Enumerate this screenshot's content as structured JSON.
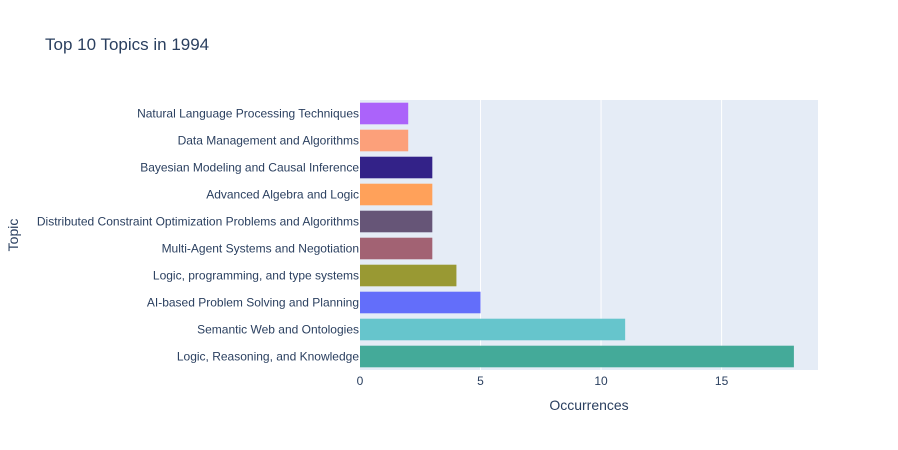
{
  "chart_data": {
    "type": "bar",
    "orientation": "horizontal",
    "title": "Top 10 Topics in 1994",
    "xlabel": "Occurrences",
    "ylabel": "Topic",
    "xlim": [
      0,
      19
    ],
    "xticks": [
      0,
      5,
      10,
      15
    ],
    "grid": true,
    "categories": [
      "Logic, Reasoning, and Knowledge",
      "Semantic Web and Ontologies",
      "AI-based Problem Solving and Planning",
      "Logic, programming, and type systems",
      "Multi-Agent Systems and Negotiation",
      "Distributed Constraint Optimization Problems and Algorithms",
      "Advanced Algebra and Logic",
      "Bayesian Modeling and Causal Inference",
      "Data Management and Algorithms",
      "Natural Language Processing Techniques"
    ],
    "values": [
      18,
      11,
      5,
      4,
      3,
      3,
      3,
      3,
      2,
      2
    ],
    "colors": [
      "#44AA99",
      "#66C5CC",
      "#636EFA",
      "#999933",
      "#A26273",
      "#665577",
      "#FFA15A",
      "#332288",
      "#FCA07A",
      "#AB63FA"
    ]
  }
}
